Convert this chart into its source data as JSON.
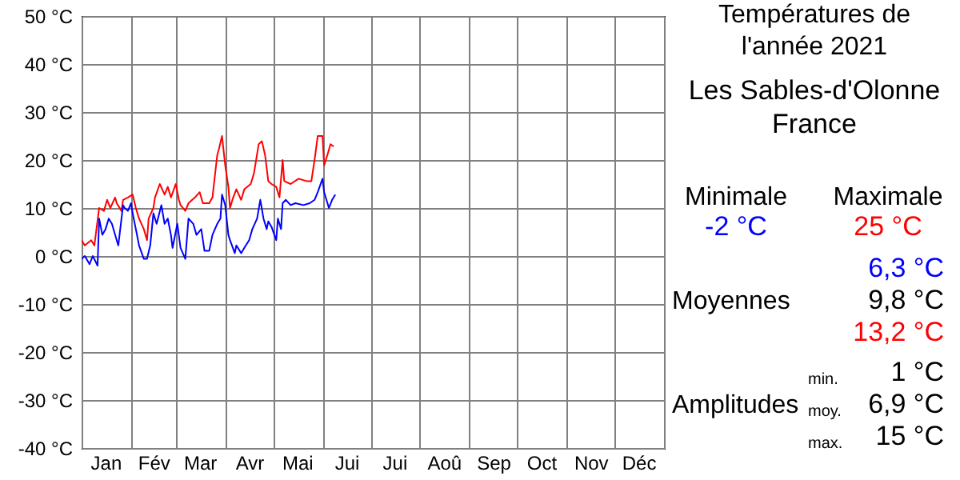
{
  "chart_data": {
    "type": "line",
    "title": "Températures de l'année 2021",
    "subtitle": "Les Sables-d'Olonne France",
    "xlim": [
      "2021-01-01",
      "2022-01-01"
    ],
    "xticks": [
      {
        "value": "2021-01-01",
        "label": null
      },
      {
        "value": "2021-02-01",
        "label": null
      },
      {
        "value": "2021-03-01",
        "label": null
      },
      {
        "value": "2021-04-01",
        "label": null
      },
      {
        "value": "2021-05-01",
        "label": null
      },
      {
        "value": "2021-06-01",
        "label": null
      },
      {
        "value": "2021-07-01",
        "label": null
      },
      {
        "value": "2021-08-01",
        "label": null
      },
      {
        "value": "2021-09-01",
        "label": null
      },
      {
        "value": "2021-10-01",
        "label": null
      },
      {
        "value": "2021-11-01",
        "label": null
      },
      {
        "value": "2021-12-01",
        "label": null
      },
      {
        "value": "2022-01-01",
        "label": null
      },
      {
        "value": "2021-01-16",
        "label": "Jan"
      },
      {
        "value": "2021-02-15",
        "label": "Fév"
      },
      {
        "value": "2021-03-16",
        "label": "Mar"
      },
      {
        "value": "2021-04-16",
        "label": "Avr"
      },
      {
        "value": "2021-05-16",
        "label": "Mai"
      },
      {
        "value": "2021-06-16",
        "label": "Jui"
      },
      {
        "value": "2021-07-16",
        "label": "Jui"
      },
      {
        "value": "2021-08-16",
        "label": "Aoû"
      },
      {
        "value": "2021-09-16",
        "label": "Sep"
      },
      {
        "value": "2021-10-16",
        "label": "Oct"
      },
      {
        "value": "2021-11-16",
        "label": "Nov"
      },
      {
        "value": "2021-12-16",
        "label": "Déc"
      }
    ],
    "ylim": [
      -40,
      50
    ],
    "yticks": [
      {
        "value": -40,
        "label": "-40 °C"
      },
      {
        "value": -30,
        "label": "-30 °C"
      },
      {
        "value": -20,
        "label": "-20 °C"
      },
      {
        "value": -10,
        "label": "-10 °C"
      },
      {
        "value": 0,
        "label": "0 °C"
      },
      {
        "value": 10,
        "label": "10 °C"
      },
      {
        "value": 20,
        "label": "20 °C"
      },
      {
        "value": 30,
        "label": "30 °C"
      },
      {
        "value": 40,
        "label": "40 °C"
      },
      {
        "value": 50,
        "label": "50 °C"
      }
    ],
    "grid": true,
    "series": [
      {
        "color": "#ff0000",
        "x": [
          "2021-01-01",
          "2021-01-03",
          "2021-01-07",
          "2021-01-09",
          "2021-01-12",
          "2021-01-15",
          "2021-01-17",
          "2021-01-19",
          "2021-01-22",
          "2021-01-23",
          "2021-01-26",
          "2021-01-27",
          "2021-01-30",
          "2021-02-02",
          "2021-02-04",
          "2021-02-06",
          "2021-02-09",
          "2021-02-11",
          "2021-02-12",
          "2021-02-15",
          "2021-02-16",
          "2021-02-19",
          "2021-02-22",
          "2021-02-24",
          "2021-02-26",
          "2021-03-01",
          "2021-03-03",
          "2021-03-04",
          "2021-03-07",
          "2021-03-09",
          "2021-03-13",
          "2021-03-16",
          "2021-03-18",
          "2021-03-22",
          "2021-03-24",
          "2021-03-27",
          "2021-03-28",
          "2021-03-30",
          "2021-04-01",
          "2021-04-03",
          "2021-04-04",
          "2021-04-06",
          "2021-04-08",
          "2021-04-11",
          "2021-04-13",
          "2021-04-17",
          "2021-04-19",
          "2021-04-22",
          "2021-04-24",
          "2021-04-26",
          "2021-04-28",
          "2021-04-30",
          "2021-05-03",
          "2021-05-05",
          "2021-05-07",
          "2021-05-08",
          "2021-05-12",
          "2021-05-17",
          "2021-05-22",
          "2021-05-25",
          "2021-05-27",
          "2021-05-29",
          "2021-06-01",
          "2021-06-02",
          "2021-06-04",
          "2021-06-06",
          "2021-06-08"
        ],
        "values": [
          3.3,
          2.2,
          3.3,
          2.2,
          10,
          9.4,
          11.7,
          10,
          12.2,
          11,
          9.4,
          11.7,
          12.2,
          12.8,
          10,
          7.8,
          5.6,
          3.3,
          7.8,
          10,
          12.2,
          15,
          12.8,
          14.4,
          12.2,
          15,
          11.7,
          10.6,
          9.4,
          11,
          12.2,
          13.3,
          11,
          11,
          12.2,
          21,
          22.2,
          25,
          18.9,
          14.4,
          10,
          12.2,
          13.9,
          11.7,
          13.9,
          15,
          17.2,
          23.3,
          23.9,
          21,
          15.6,
          15,
          14.4,
          12.2,
          20,
          15.6,
          15,
          16.1,
          15.6,
          15.6,
          20,
          25,
          25,
          18.9,
          21,
          23.3,
          22.8
        ]
      },
      {
        "color": "#0000ff",
        "x": [
          "2021-01-01",
          "2021-01-03",
          "2021-01-06",
          "2021-01-08",
          "2021-01-11",
          "2021-01-12",
          "2021-01-14",
          "2021-01-16",
          "2021-01-18",
          "2021-01-20",
          "2021-01-23",
          "2021-01-24",
          "2021-01-27",
          "2021-01-28",
          "2021-01-30",
          "2021-02-01",
          "2021-02-02",
          "2021-02-04",
          "2021-02-06",
          "2021-02-09",
          "2021-02-11",
          "2021-02-13",
          "2021-02-15",
          "2021-02-17",
          "2021-02-20",
          "2021-02-22",
          "2021-02-24",
          "2021-02-26",
          "2021-02-27",
          "2021-03-02",
          "2021-03-04",
          "2021-03-07",
          "2021-03-09",
          "2021-03-12",
          "2021-03-14",
          "2021-03-17",
          "2021-03-19",
          "2021-03-22",
          "2021-03-24",
          "2021-03-27",
          "2021-03-29",
          "2021-03-30",
          "2021-04-01",
          "2021-04-03",
          "2021-04-04",
          "2021-04-07",
          "2021-04-08",
          "2021-04-11",
          "2021-04-13",
          "2021-04-16",
          "2021-04-18",
          "2021-04-21",
          "2021-04-23",
          "2021-04-25",
          "2021-04-27",
          "2021-04-28",
          "2021-04-30",
          "2021-05-03",
          "2021-05-04",
          "2021-05-06",
          "2021-05-07",
          "2021-05-09",
          "2021-05-12",
          "2021-05-15",
          "2021-05-20",
          "2021-05-24",
          "2021-05-27",
          "2021-05-29",
          "2021-06-01",
          "2021-06-02",
          "2021-06-05",
          "2021-06-07",
          "2021-06-09"
        ],
        "values": [
          -0.6,
          0,
          -1.7,
          0,
          -2,
          7.8,
          4.4,
          5.6,
          7.8,
          6.7,
          3.3,
          2.2,
          10.6,
          10,
          9.4,
          11,
          8.9,
          5.6,
          2.2,
          -0.6,
          -0.6,
          2.2,
          8.9,
          6.7,
          10.6,
          6.7,
          7.8,
          4.4,
          1.7,
          6.7,
          1.7,
          -0.6,
          7.8,
          6.7,
          4.4,
          5.6,
          1.1,
          1.1,
          4.4,
          6.7,
          7.8,
          12.8,
          10.6,
          4.4,
          3.3,
          0.6,
          2.2,
          0.6,
          1.7,
          3.3,
          5.6,
          7.8,
          11.7,
          7.8,
          5.6,
          7.2,
          6.1,
          3.3,
          7.8,
          5.6,
          11,
          11.7,
          10.6,
          11,
          10.6,
          11,
          11.7,
          13.3,
          16.1,
          13.3,
          10,
          11.7,
          12.8
        ]
      }
    ],
    "annotations": [
      "Minimale",
      "Maximale",
      "-2 °C",
      "25 °C",
      "6,3 °C",
      "Moyennes",
      "9,8 °C",
      "13,2 °C",
      "min.",
      "1 °C",
      "Amplitudes",
      "moy.",
      "6,9 °C",
      "max.",
      "15 °C"
    ]
  }
}
